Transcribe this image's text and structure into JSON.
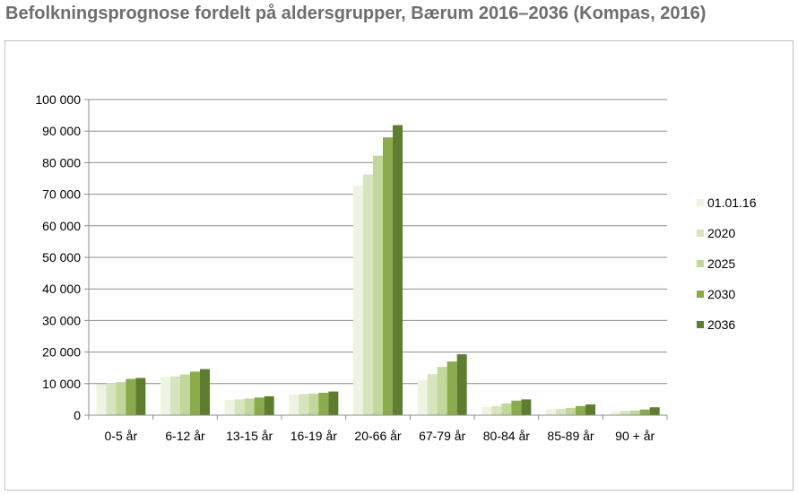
{
  "title": "Befolkningsprognose fordelt på aldersgrupper, Bærum 2016–2036 (Kompas, 2016)",
  "chart_data": {
    "type": "bar",
    "title": "Befolkningsprognose fordelt på aldersgrupper, Bærum 2016–2036 (Kompas, 2016)",
    "xlabel": "",
    "ylabel": "",
    "ylim": [
      0,
      100000
    ],
    "yticks": [
      0,
      10000,
      20000,
      30000,
      40000,
      50000,
      60000,
      70000,
      80000,
      90000,
      100000
    ],
    "ytick_labels": [
      "0",
      "10 000",
      "20 000",
      "30 000",
      "40 000",
      "50 000",
      "60 000",
      "70 000",
      "80 000",
      "90 000",
      "100 000"
    ],
    "grid": true,
    "legend_position": "right",
    "categories": [
      "0-5 år",
      "6-12 år",
      "13-15 år",
      "16-19 år",
      "20-66 år",
      "67-79 år",
      "80-84 år",
      "85-89 år",
      "90 + år"
    ],
    "series": [
      {
        "name": "01.01.16",
        "color": "#eef3e2",
        "values": [
          9800,
          12000,
          4800,
          6500,
          72700,
          11200,
          2600,
          1900,
          1200
        ]
      },
      {
        "name": "2020",
        "color": "#d7e4bd",
        "values": [
          10100,
          12300,
          5000,
          6700,
          76300,
          13000,
          2900,
          2000,
          1400
        ]
      },
      {
        "name": "2025",
        "color": "#c3d69b",
        "values": [
          10500,
          12900,
          5300,
          6800,
          82200,
          15300,
          3700,
          2300,
          1500
        ]
      },
      {
        "name": "2030",
        "color": "#8aaa4c",
        "values": [
          11500,
          13800,
          5600,
          7100,
          88000,
          17000,
          4600,
          2900,
          1800
        ]
      },
      {
        "name": "2036",
        "color": "#5f7d30",
        "values": [
          11800,
          14600,
          6000,
          7500,
          91900,
          19300,
          5000,
          3400,
          2500
        ]
      }
    ]
  }
}
